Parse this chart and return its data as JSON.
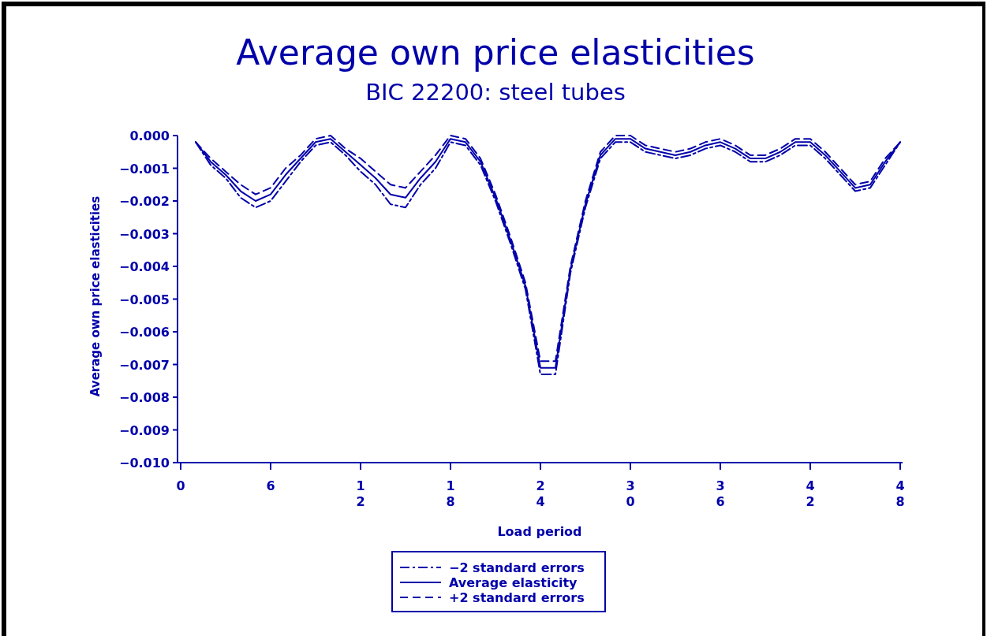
{
  "chart_data": {
    "type": "line",
    "title": "Average own price elasticities",
    "subtitle": "BIC 22200: steel tubes",
    "xlabel": "Load period",
    "ylabel": "Average own price elasticities",
    "x": [
      1,
      2,
      3,
      4,
      5,
      6,
      7,
      8,
      9,
      10,
      11,
      12,
      13,
      14,
      15,
      16,
      17,
      18,
      19,
      20,
      21,
      22,
      23,
      24,
      25,
      26,
      27,
      28,
      29,
      30,
      31,
      32,
      33,
      34,
      35,
      36,
      37,
      38,
      39,
      40,
      41,
      42,
      43,
      44,
      45,
      46,
      47,
      48
    ],
    "xlim": [
      0,
      48
    ],
    "xticks": [
      0,
      6,
      12,
      18,
      24,
      30,
      36,
      42,
      48
    ],
    "ylim": [
      -0.01,
      0
    ],
    "yticks": [
      {
        "value": 0,
        "label": "0.000"
      },
      {
        "value": -0.001,
        "label": "−0.001"
      },
      {
        "value": -0.002,
        "label": "−0.002"
      },
      {
        "value": -0.003,
        "label": "−0.003"
      },
      {
        "value": -0.004,
        "label": "−0.004"
      },
      {
        "value": -0.005,
        "label": "−0.005"
      },
      {
        "value": -0.006,
        "label": "−0.006"
      },
      {
        "value": -0.007,
        "label": "−0.007"
      },
      {
        "value": -0.008,
        "label": "−0.008"
      },
      {
        "value": -0.009,
        "label": "−0.009"
      },
      {
        "value": -0.01,
        "label": "−0.010"
      }
    ],
    "grid": false,
    "legend": "bottom",
    "marker": "none",
    "series": [
      {
        "name": "−2 standard errors",
        "color": "#0000aa",
        "line_style": "dashdot",
        "values": [
          -0.0002,
          -0.0009,
          -0.0013,
          -0.0019,
          -0.0022,
          -0.002,
          -0.0014,
          -0.0008,
          -0.0003,
          -0.0002,
          -0.0006,
          -0.0011,
          -0.0015,
          -0.0021,
          -0.0022,
          -0.0015,
          -0.001,
          -0.0002,
          -0.0003,
          -0.0009,
          -0.002,
          -0.0033,
          -0.0047,
          -0.0073,
          -0.0073,
          -0.0042,
          -0.0022,
          -0.0007,
          -0.0002,
          -0.0002,
          -0.0005,
          -0.0006,
          -0.0007,
          -0.0006,
          -0.0004,
          -0.0003,
          -0.0005,
          -0.0008,
          -0.0008,
          -0.0006,
          -0.0003,
          -0.0003,
          -0.0007,
          -0.0012,
          -0.0017,
          -0.0016,
          -0.0009,
          -0.0002
        ]
      },
      {
        "name": "Average elasticity",
        "color": "#0000aa",
        "line_style": "solid",
        "values": [
          -0.0002,
          -0.0008,
          -0.0012,
          -0.0017,
          -0.002,
          -0.0018,
          -0.0012,
          -0.0007,
          -0.0002,
          -0.0001,
          -0.0005,
          -0.0009,
          -0.0013,
          -0.0018,
          -0.0019,
          -0.0013,
          -0.0008,
          -0.0001,
          -0.0002,
          -0.0008,
          -0.0019,
          -0.0032,
          -0.0046,
          -0.0071,
          -0.0071,
          -0.0041,
          -0.0021,
          -0.0006,
          -0.0001,
          -0.0001,
          -0.0004,
          -0.0005,
          -0.0006,
          -0.0005,
          -0.0003,
          -0.0002,
          -0.0004,
          -0.0007,
          -0.0007,
          -0.0005,
          -0.0002,
          -0.0002,
          -0.0006,
          -0.0011,
          -0.0016,
          -0.0015,
          -0.0008,
          -0.0002
        ]
      },
      {
        "name": "+2 standard errors",
        "color": "#0000aa",
        "line_style": "dashed",
        "values": [
          -0.0002,
          -0.0007,
          -0.0011,
          -0.0015,
          -0.0018,
          -0.0016,
          -0.001,
          -0.0006,
          -0.0001,
          0,
          -0.0004,
          -0.0007,
          -0.0011,
          -0.0015,
          -0.0016,
          -0.0011,
          -0.0006,
          0,
          -0.0001,
          -0.0007,
          -0.0018,
          -0.0031,
          -0.0045,
          -0.0069,
          -0.0069,
          -0.004,
          -0.002,
          -0.0005,
          0,
          0,
          -0.0003,
          -0.0004,
          -0.0005,
          -0.0004,
          -0.0002,
          -0.0001,
          -0.0003,
          -0.0006,
          -0.0006,
          -0.0004,
          -0.0001,
          -0.0001,
          -0.0005,
          -0.001,
          -0.0015,
          -0.0014,
          -0.0007,
          -0.0002
        ]
      }
    ]
  }
}
